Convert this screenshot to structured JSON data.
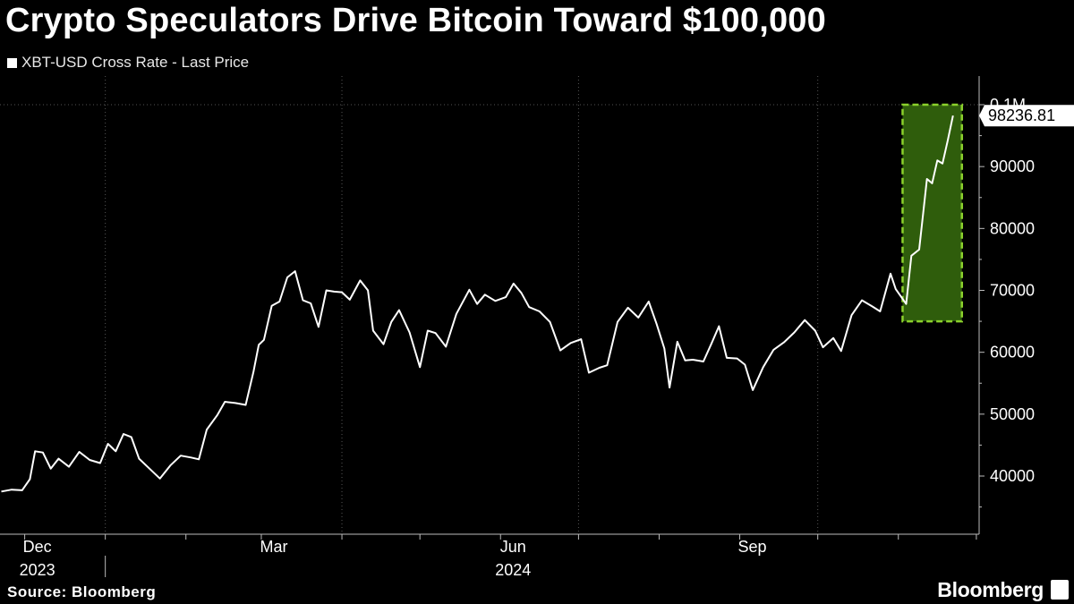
{
  "header": {
    "title": "Crypto Speculators Drive Bitcoin Toward $100,000",
    "legend_label": "XBT-USD Cross Rate - Last Price"
  },
  "footer": {
    "source": "Source: Bloomberg",
    "logo": "Bloomberg"
  },
  "colors": {
    "background": "#000000",
    "line": "#ffffff",
    "highlight_fill": "#2f5d0c",
    "highlight_border": "#8bd12c",
    "grid": "#555555"
  },
  "chart_data": {
    "type": "line",
    "title": "Crypto Speculators Drive Bitcoin Toward $100,000",
    "series": [
      {
        "name": "XBT-USD Cross Rate - Last Price",
        "points": [
          [
            "2023-11-22",
            37500
          ],
          [
            "2023-11-26",
            37800
          ],
          [
            "2023-11-30",
            37700
          ],
          [
            "2023-12-03",
            39500
          ],
          [
            "2023-12-05",
            44000
          ],
          [
            "2023-12-08",
            43800
          ],
          [
            "2023-12-11",
            41200
          ],
          [
            "2023-12-14",
            42800
          ],
          [
            "2023-12-18",
            41500
          ],
          [
            "2023-12-22",
            43900
          ],
          [
            "2023-12-26",
            42600
          ],
          [
            "2023-12-30",
            42100
          ],
          [
            "2024-01-02",
            45200
          ],
          [
            "2024-01-05",
            44000
          ],
          [
            "2024-01-08",
            46800
          ],
          [
            "2024-01-11",
            46300
          ],
          [
            "2024-01-14",
            42800
          ],
          [
            "2024-01-18",
            41200
          ],
          [
            "2024-01-22",
            39600
          ],
          [
            "2024-01-26",
            41700
          ],
          [
            "2024-01-30",
            43300
          ],
          [
            "2024-02-03",
            43000
          ],
          [
            "2024-02-06",
            42700
          ],
          [
            "2024-02-09",
            47500
          ],
          [
            "2024-02-13",
            49800
          ],
          [
            "2024-02-16",
            52000
          ],
          [
            "2024-02-20",
            51800
          ],
          [
            "2024-02-24",
            51500
          ],
          [
            "2024-02-27",
            56900
          ],
          [
            "2024-02-29",
            61200
          ],
          [
            "2024-03-02",
            62000
          ],
          [
            "2024-03-05",
            67500
          ],
          [
            "2024-03-08",
            68200
          ],
          [
            "2024-03-11",
            72100
          ],
          [
            "2024-03-14",
            73100
          ],
          [
            "2024-03-17",
            68400
          ],
          [
            "2024-03-20",
            67900
          ],
          [
            "2024-03-23",
            64100
          ],
          [
            "2024-03-26",
            70000
          ],
          [
            "2024-03-29",
            69800
          ],
          [
            "2024-04-01",
            69700
          ],
          [
            "2024-04-04",
            68500
          ],
          [
            "2024-04-08",
            71600
          ],
          [
            "2024-04-11",
            70000
          ],
          [
            "2024-04-13",
            63500
          ],
          [
            "2024-04-17",
            61300
          ],
          [
            "2024-04-20",
            64900
          ],
          [
            "2024-04-23",
            66800
          ],
          [
            "2024-04-27",
            63200
          ],
          [
            "2024-05-01",
            57600
          ],
          [
            "2024-05-04",
            63500
          ],
          [
            "2024-05-07",
            63100
          ],
          [
            "2024-05-11",
            60900
          ],
          [
            "2024-05-15",
            66200
          ],
          [
            "2024-05-20",
            70100
          ],
          [
            "2024-05-23",
            67800
          ],
          [
            "2024-05-26",
            69300
          ],
          [
            "2024-05-30",
            68300
          ],
          [
            "2024-06-03",
            68900
          ],
          [
            "2024-06-06",
            71100
          ],
          [
            "2024-06-09",
            69600
          ],
          [
            "2024-06-12",
            67300
          ],
          [
            "2024-06-16",
            66600
          ],
          [
            "2024-06-20",
            64900
          ],
          [
            "2024-06-24",
            60300
          ],
          [
            "2024-06-28",
            61500
          ],
          [
            "2024-07-02",
            62100
          ],
          [
            "2024-07-05",
            56700
          ],
          [
            "2024-07-09",
            57500
          ],
          [
            "2024-07-12",
            57900
          ],
          [
            "2024-07-16",
            64900
          ],
          [
            "2024-07-20",
            67200
          ],
          [
            "2024-07-24",
            65600
          ],
          [
            "2024-07-28",
            68200
          ],
          [
            "2024-07-31",
            64600
          ],
          [
            "2024-08-03",
            60600
          ],
          [
            "2024-08-05",
            54300
          ],
          [
            "2024-08-08",
            61700
          ],
          [
            "2024-08-11",
            58700
          ],
          [
            "2024-08-14",
            58800
          ],
          [
            "2024-08-18",
            58500
          ],
          [
            "2024-08-21",
            61300
          ],
          [
            "2024-08-24",
            64200
          ],
          [
            "2024-08-27",
            59100
          ],
          [
            "2024-08-31",
            59000
          ],
          [
            "2024-09-03",
            58000
          ],
          [
            "2024-09-06",
            53900
          ],
          [
            "2024-09-10",
            57600
          ],
          [
            "2024-09-14",
            60400
          ],
          [
            "2024-09-18",
            61600
          ],
          [
            "2024-09-22",
            63200
          ],
          [
            "2024-09-26",
            65200
          ],
          [
            "2024-09-30",
            63500
          ],
          [
            "2024-10-03",
            60800
          ],
          [
            "2024-10-07",
            62300
          ],
          [
            "2024-10-10",
            60200
          ],
          [
            "2024-10-14",
            66000
          ],
          [
            "2024-10-18",
            68400
          ],
          [
            "2024-10-22",
            67400
          ],
          [
            "2024-10-25",
            66600
          ],
          [
            "2024-10-29",
            72700
          ],
          [
            "2024-10-31",
            70200
          ],
          [
            "2024-11-04",
            67800
          ],
          [
            "2024-11-06",
            75600
          ],
          [
            "2024-11-09",
            76600
          ],
          [
            "2024-11-12",
            88000
          ],
          [
            "2024-11-14",
            87300
          ],
          [
            "2024-11-16",
            91000
          ],
          [
            "2024-11-18",
            90500
          ],
          [
            "2024-11-20",
            94200
          ],
          [
            "2024-11-22",
            98236.81
          ]
        ]
      }
    ],
    "x_axis": {
      "range": [
        "2023-11-22",
        "2024-11-30"
      ],
      "tick_labels": [
        {
          "date": "2023-12-01",
          "label": "Dec",
          "sublabel": "2023"
        },
        {
          "date": "2024-03-01",
          "label": "Mar",
          "sublabel": ""
        },
        {
          "date": "2024-06-01",
          "label": "Jun",
          "sublabel": "2024"
        },
        {
          "date": "2024-09-01",
          "label": "Sep",
          "sublabel": ""
        }
      ],
      "minor_ticks": [
        "2024-01-01",
        "2024-02-01",
        "2024-04-01",
        "2024-05-01",
        "2024-07-01",
        "2024-08-01",
        "2024-10-01",
        "2024-11-01",
        "2024-12-01"
      ]
    },
    "y_axis": {
      "range": [
        35000,
        103000
      ],
      "ticks": [
        {
          "value": 40000,
          "label": "40000"
        },
        {
          "value": 50000,
          "label": "50000"
        },
        {
          "value": 60000,
          "label": "60000"
        },
        {
          "value": 70000,
          "label": "70000"
        },
        {
          "value": 80000,
          "label": "80000"
        },
        {
          "value": 90000,
          "label": "90000"
        },
        {
          "value": 100000,
          "label": "0.1M"
        }
      ]
    },
    "gridlines": {
      "vertical_dates": [
        "2024-01-01",
        "2024-04-01",
        "2024-07-01",
        "2024-10-01"
      ],
      "horizontal_values": [
        100000
      ]
    },
    "highlight": {
      "from": "2024-11-04",
      "to": "2024-11-22",
      "y_min": 65000,
      "y_max": 100000
    },
    "last_value_label": "98236.81",
    "last_value": 98236.81
  }
}
